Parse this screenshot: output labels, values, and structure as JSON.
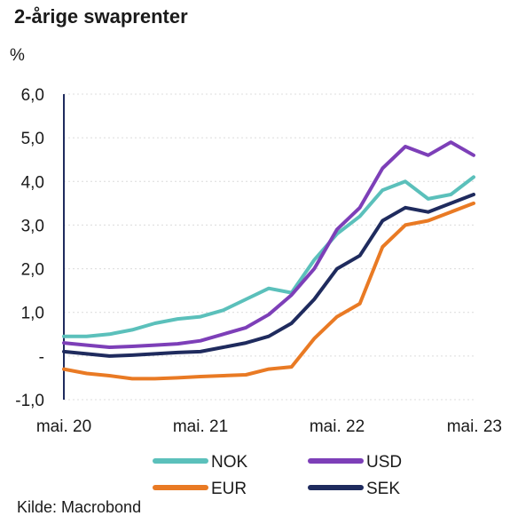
{
  "chart_data": {
    "type": "line",
    "title": "2-årige swaprenter",
    "ylabel": "%",
    "source": "Kilde: Macrobond",
    "ylim": [
      -1.0,
      6.0
    ],
    "yticks": [
      6.0,
      5.0,
      4.0,
      3.0,
      2.0,
      1.0,
      0.0,
      -1.0
    ],
    "ytick_labels": [
      "6,0",
      "5,0",
      "4,0",
      "3,0",
      "2,0",
      "1,0",
      "-",
      "-1,0"
    ],
    "x_range": [
      "2020-05",
      "2023-05"
    ],
    "xtick_labels": [
      "mai. 20",
      "mai. 21",
      "mai. 22",
      "mai. 23"
    ],
    "xtick_dates": [
      "2020-05",
      "2021-05",
      "2022-05",
      "2023-05"
    ],
    "grid": true,
    "legend": "bottom",
    "x": [
      "2020-05",
      "2020-07",
      "2020-09",
      "2020-11",
      "2021-01",
      "2021-03",
      "2021-05",
      "2021-07",
      "2021-09",
      "2021-11",
      "2022-01",
      "2022-03",
      "2022-05",
      "2022-07",
      "2022-09",
      "2022-11",
      "2023-01",
      "2023-03",
      "2023-05"
    ],
    "series": [
      {
        "name": "NOK",
        "color": "#5bc0bb",
        "values": [
          0.45,
          0.45,
          0.5,
          0.6,
          0.75,
          0.85,
          0.9,
          1.05,
          1.3,
          1.55,
          1.45,
          2.2,
          2.8,
          3.2,
          3.8,
          4.0,
          3.6,
          3.7,
          4.1
        ]
      },
      {
        "name": "USD",
        "color": "#7d3fb8",
        "values": [
          0.3,
          0.25,
          0.2,
          0.22,
          0.25,
          0.28,
          0.35,
          0.5,
          0.65,
          0.95,
          1.4,
          2.0,
          2.9,
          3.4,
          4.3,
          4.8,
          4.6,
          4.9,
          4.6
        ]
      },
      {
        "name": "EUR",
        "color": "#e97a24",
        "values": [
          -0.3,
          -0.4,
          -0.45,
          -0.52,
          -0.52,
          -0.5,
          -0.47,
          -0.45,
          -0.43,
          -0.3,
          -0.25,
          0.4,
          0.9,
          1.2,
          2.5,
          3.0,
          3.1,
          3.3,
          3.5
        ]
      },
      {
        "name": "SEK",
        "color": "#1f2b5e",
        "values": [
          0.1,
          0.05,
          0.0,
          0.02,
          0.05,
          0.08,
          0.1,
          0.2,
          0.3,
          0.45,
          0.75,
          1.3,
          2.0,
          2.3,
          3.1,
          3.4,
          3.3,
          3.5,
          3.7
        ]
      }
    ]
  }
}
